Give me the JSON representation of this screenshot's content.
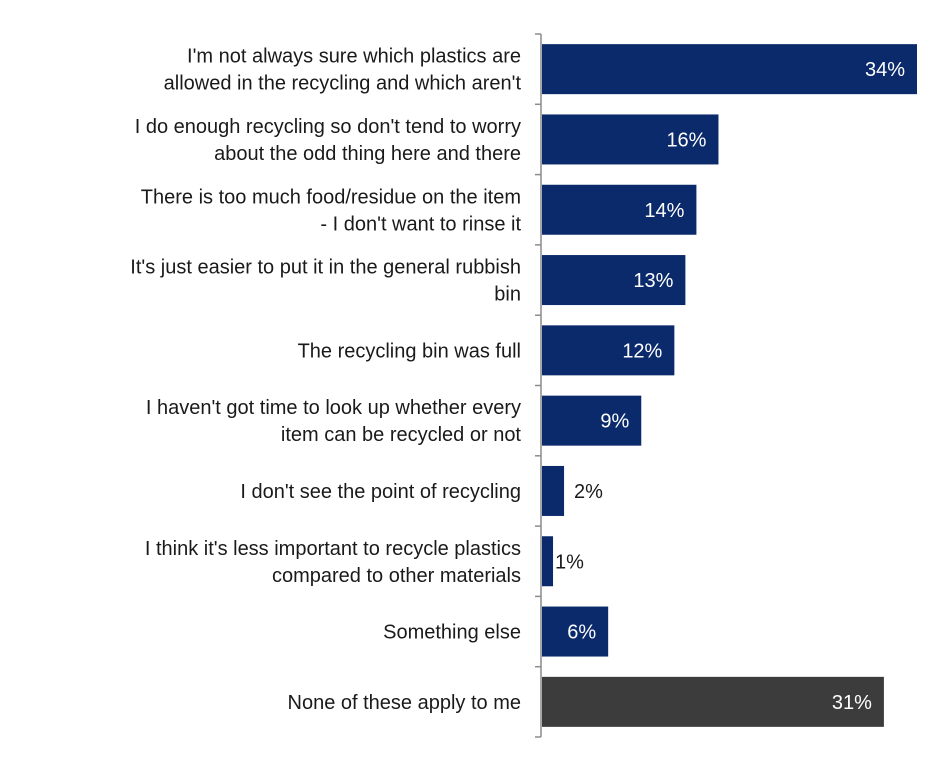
{
  "chart_data": {
    "type": "bar",
    "orientation": "horizontal",
    "categories": [
      "I'm not always sure which plastics are\nallowed in the recycling and which aren't",
      "I do enough recycling so don't tend to worry\nabout the odd thing here and there",
      "There is too much food/residue on the item\n- I don't want to rinse it",
      "It's just easier to put it in the general rubbish\nbin",
      "The recycling bin was full",
      "I haven't got time to look up whether every\nitem can be recycled or not",
      "I don't see the point of recycling",
      "I think it's less important to recycle plastics\ncompared to other materials",
      "Something else",
      "None of these apply to me"
    ],
    "values": [
      34,
      16,
      14,
      13,
      12,
      9,
      2,
      1,
      6,
      31
    ],
    "value_labels": [
      "34%",
      "16%",
      "14%",
      "13%",
      "12%",
      "9%",
      "2%",
      "1%",
      "6%",
      "31%"
    ],
    "bar_colors": [
      "#0a2a6b",
      "#0a2a6b",
      "#0a2a6b",
      "#0a2a6b",
      "#0a2a6b",
      "#0a2a6b",
      "#0a2a6b",
      "#0a2a6b",
      "#0a2a6b",
      "#3c3c3c"
    ],
    "xlim": [
      0,
      34
    ],
    "grid": false,
    "title": "",
    "xlabel": "",
    "ylabel": ""
  }
}
